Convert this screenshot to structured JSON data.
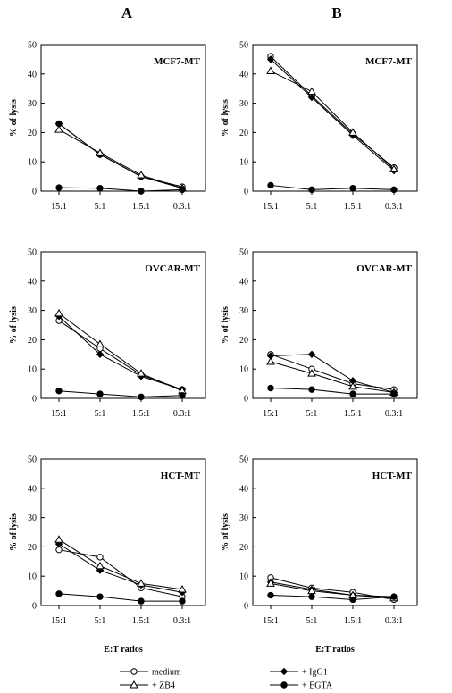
{
  "columns": [
    "A",
    "B"
  ],
  "y_axis_label": "% of lysis",
  "x_axis_label": "E:T ratios",
  "legend": [
    {
      "name": "medium",
      "marker": "circle-open"
    },
    {
      "name": "+ IgG1",
      "marker": "diamond-filled"
    },
    {
      "name": "+ ZB4",
      "marker": "triangle-open"
    },
    {
      "name": "+ EGTA",
      "marker": "circle-filled"
    }
  ],
  "chart_data": [
    {
      "type": "line",
      "column": "A",
      "title": "MCF7-MT",
      "categories": [
        "15:1",
        "5:1",
        "1.5:1",
        "0.3:1"
      ],
      "ylabel": "% of lysis",
      "xlabel": "",
      "ylim": [
        0,
        50
      ],
      "yticks": [
        0,
        10,
        20,
        30,
        40,
        50
      ],
      "series": [
        {
          "name": "medium",
          "values": [
            23,
            12.5,
            5,
            1.5
          ]
        },
        {
          "name": "+ IgG1",
          "values": [
            23,
            12.5,
            5,
            1
          ]
        },
        {
          "name": "+ ZB4",
          "values": [
            21,
            13,
            5.5,
            1
          ]
        },
        {
          "name": "+ EGTA",
          "values": [
            1.2,
            1,
            0,
            0.5
          ]
        }
      ]
    },
    {
      "type": "line",
      "column": "B",
      "title": "MCF7-MT",
      "categories": [
        "15:1",
        "5:1",
        "1.5:1",
        "0.3:1"
      ],
      "ylabel": "% of lysis",
      "xlabel": "",
      "ylim": [
        0,
        50
      ],
      "yticks": [
        0,
        10,
        20,
        30,
        40,
        50
      ],
      "series": [
        {
          "name": "medium",
          "values": [
            46,
            32.5,
            19.5,
            8
          ]
        },
        {
          "name": "+ IgG1",
          "values": [
            45,
            32,
            19,
            7
          ]
        },
        {
          "name": "+ ZB4",
          "values": [
            41,
            34,
            20,
            7.5
          ]
        },
        {
          "name": "+ EGTA",
          "values": [
            2,
            0.5,
            1,
            0.5
          ]
        }
      ]
    },
    {
      "type": "line",
      "column": "A",
      "title": "OVCAR-MT",
      "categories": [
        "15:1",
        "5:1",
        "1.5:1",
        "0.3:1"
      ],
      "ylabel": "% of lysis",
      "xlabel": "",
      "ylim": [
        0,
        50
      ],
      "yticks": [
        0,
        10,
        20,
        30,
        40,
        50
      ],
      "series": [
        {
          "name": "medium",
          "values": [
            26.5,
            17,
            8,
            3
          ]
        },
        {
          "name": "+ IgG1",
          "values": [
            28,
            15,
            7.5,
            3
          ]
        },
        {
          "name": "+ ZB4",
          "values": [
            29,
            18.5,
            8.5,
            2.5
          ]
        },
        {
          "name": "+ EGTA",
          "values": [
            2.5,
            1.5,
            0.5,
            1
          ]
        }
      ]
    },
    {
      "type": "line",
      "column": "B",
      "title": "OVCAR-MT",
      "categories": [
        "15:1",
        "5:1",
        "1.5:1",
        "0.3:1"
      ],
      "ylabel": "% of lysis",
      "xlabel": "",
      "ylim": [
        0,
        50
      ],
      "yticks": [
        0,
        10,
        20,
        30,
        40,
        50
      ],
      "series": [
        {
          "name": "medium",
          "values": [
            15,
            10,
            5,
            3
          ]
        },
        {
          "name": "+ IgG1",
          "values": [
            14.5,
            15,
            6,
            2
          ]
        },
        {
          "name": "+ ZB4",
          "values": [
            12.5,
            8.5,
            4,
            2
          ]
        },
        {
          "name": "+ EGTA",
          "values": [
            3.5,
            3,
            1.5,
            1.5
          ]
        }
      ]
    },
    {
      "type": "line",
      "column": "A",
      "title": "HCT-MT",
      "categories": [
        "15:1",
        "5:1",
        "1.5:1",
        "0.3:1"
      ],
      "ylabel": "% of lysis",
      "xlabel": "E:T ratios",
      "ylim": [
        0,
        50
      ],
      "yticks": [
        0,
        10,
        20,
        30,
        40,
        50
      ],
      "series": [
        {
          "name": "medium",
          "values": [
            19,
            16.5,
            6,
            3
          ]
        },
        {
          "name": "+ IgG1",
          "values": [
            21,
            12,
            7,
            4.5
          ]
        },
        {
          "name": "+ ZB4",
          "values": [
            22.5,
            13.5,
            7.5,
            5.5
          ]
        },
        {
          "name": "+ EGTA",
          "values": [
            4,
            3,
            1.5,
            1.5
          ]
        }
      ]
    },
    {
      "type": "line",
      "column": "B",
      "title": "HCT-MT",
      "categories": [
        "15:1",
        "5:1",
        "1.5:1",
        "0.3:1"
      ],
      "ylabel": "% of lysis",
      "xlabel": "E:T ratios",
      "ylim": [
        0,
        50
      ],
      "yticks": [
        0,
        10,
        20,
        30,
        40,
        50
      ],
      "series": [
        {
          "name": "medium",
          "values": [
            9.5,
            6,
            4.5,
            2
          ]
        },
        {
          "name": "+ IgG1",
          "values": [
            8,
            5.5,
            3.5,
            3
          ]
        },
        {
          "name": "+ ZB4",
          "values": [
            7.5,
            5,
            3.5,
            2.5
          ]
        },
        {
          "name": "+ EGTA",
          "values": [
            3.5,
            3,
            2,
            3
          ]
        }
      ]
    }
  ]
}
